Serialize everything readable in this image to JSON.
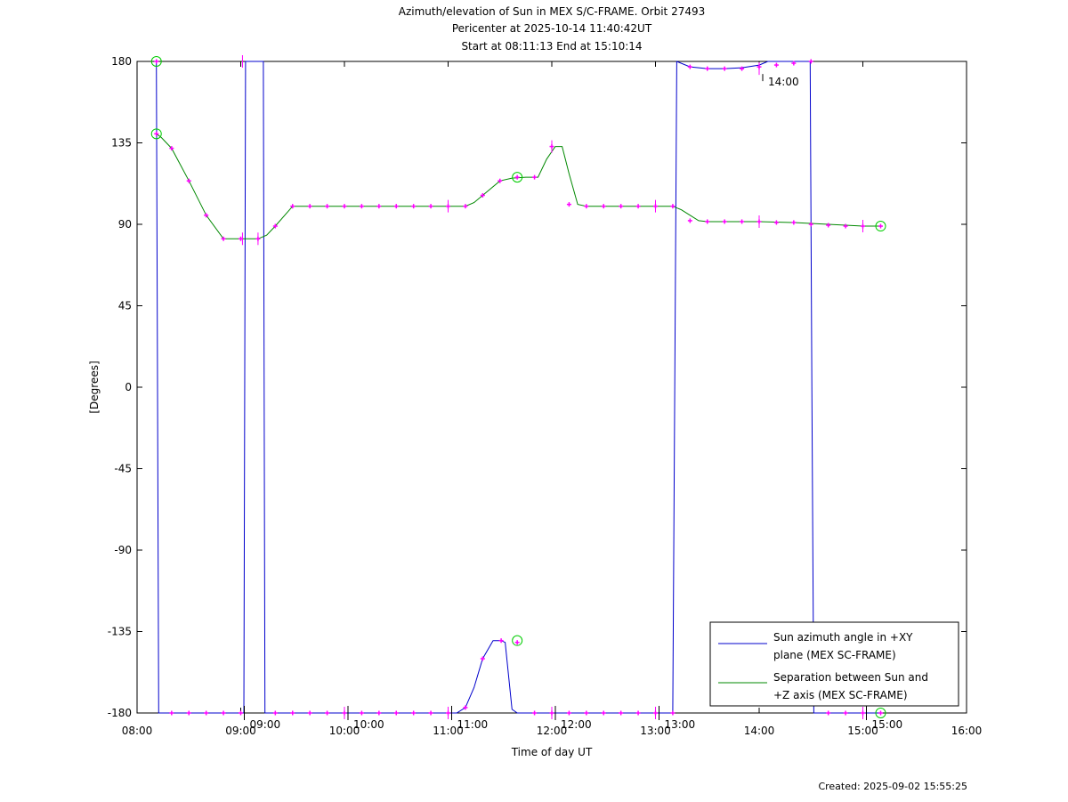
{
  "chart_data": {
    "type": "line",
    "title_lines": [
      "Azimuth/elevation of Sun in MEX S/C-FRAME.  Orbit 27493",
      "Pericenter at 2025-10-14 11:40:42UT",
      "Start at 08:11:13 End at 15:10:14"
    ],
    "xlabel": "Time of day UT",
    "ylabel": "[Degrees]",
    "xlim": [
      480,
      960
    ],
    "ylim": [
      -180,
      180
    ],
    "x_ticks": [
      {
        "value": 480,
        "label": "08:00"
      },
      {
        "value": 540,
        "label": "09:00"
      },
      {
        "value": 600,
        "label": "10:00"
      },
      {
        "value": 660,
        "label": "11:00"
      },
      {
        "value": 720,
        "label": "12:00"
      },
      {
        "value": 780,
        "label": "13:00"
      },
      {
        "value": 840,
        "label": "14:00"
      },
      {
        "value": 900,
        "label": "15:00"
      },
      {
        "value": 960,
        "label": "16:00"
      }
    ],
    "y_ticks": [
      180,
      135,
      90,
      45,
      0,
      -45,
      -90,
      -135,
      -180
    ],
    "grid": false,
    "legend_position": "bottom-right",
    "series": [
      {
        "name": "Sun azimuth angle in +XY plane (MEX SC-FRAME)",
        "name_lines": [
          "Sun azimuth angle in +XY",
          "plane (MEX SC-FRAME)"
        ],
        "color": "#0000cc",
        "points": [
          [
            491.2,
            180
          ],
          [
            492.5,
            -180
          ],
          [
            541.8,
            -180
          ],
          [
            542.8,
            180
          ],
          [
            553.1,
            180
          ],
          [
            554.0,
            -180
          ],
          [
            660,
            -180
          ],
          [
            665,
            -180
          ],
          [
            670,
            -177
          ],
          [
            675,
            -166
          ],
          [
            680,
            -150
          ],
          [
            686,
            -140
          ],
          [
            690.7,
            -140
          ],
          [
            693,
            -141
          ],
          [
            697,
            -178
          ],
          [
            700,
            -180
          ],
          [
            750,
            -180
          ],
          [
            790,
            -180
          ],
          [
            792.3,
            180
          ],
          [
            800,
            177
          ],
          [
            810,
            176
          ],
          [
            820,
            176
          ],
          [
            830,
            176.5
          ],
          [
            840,
            178
          ],
          [
            845,
            180
          ],
          [
            869.5,
            180
          ],
          [
            870.5,
            0
          ],
          [
            871.6,
            -180
          ],
          [
            910.3,
            -180
          ]
        ]
      },
      {
        "name": "Separation between Sun and +Z axis (MEX SC-FRAME)",
        "name_lines": [
          "Separation between Sun and",
          "+Z axis (MEX SC-FRAME)"
        ],
        "color": "#008800",
        "points": [
          [
            491.2,
            140
          ],
          [
            494,
            138
          ],
          [
            500,
            132
          ],
          [
            510,
            114
          ],
          [
            520,
            95
          ],
          [
            530,
            82
          ],
          [
            540,
            82
          ],
          [
            550,
            82
          ],
          [
            555,
            84
          ],
          [
            560,
            89
          ],
          [
            570,
            100
          ],
          [
            580,
            100
          ],
          [
            600,
            100
          ],
          [
            620,
            100
          ],
          [
            640,
            100
          ],
          [
            660,
            100
          ],
          [
            670,
            100
          ],
          [
            675,
            102
          ],
          [
            680,
            106
          ],
          [
            690,
            114
          ],
          [
            697,
            115.5
          ],
          [
            705,
            116
          ],
          [
            712,
            116
          ],
          [
            717,
            126
          ],
          [
            722,
            133
          ],
          [
            726,
            133
          ],
          [
            730,
            118
          ],
          [
            735,
            101
          ],
          [
            740,
            100
          ],
          [
            760,
            100
          ],
          [
            780,
            100
          ],
          [
            790,
            100
          ],
          [
            795,
            98
          ],
          [
            800,
            95
          ],
          [
            805,
            92
          ],
          [
            810,
            91.5
          ],
          [
            840,
            91.5
          ],
          [
            860,
            91
          ],
          [
            880,
            90
          ],
          [
            900,
            89
          ],
          [
            910.3,
            89
          ]
        ]
      }
    ],
    "marker_color": "#ff00ff",
    "markers": [
      [
        491.2,
        180
      ],
      [
        500,
        -180
      ],
      [
        510,
        -180
      ],
      [
        520,
        -180
      ],
      [
        530,
        -180
      ],
      [
        540,
        -180
      ],
      [
        560,
        -180
      ],
      [
        570,
        -180
      ],
      [
        580,
        -180
      ],
      [
        590,
        -180
      ],
      [
        600,
        -180
      ],
      [
        610,
        -180
      ],
      [
        620,
        -180
      ],
      [
        630,
        -180
      ],
      [
        640,
        -180
      ],
      [
        650,
        -180
      ],
      [
        660,
        -180
      ],
      [
        670,
        -177
      ],
      [
        680,
        -150
      ],
      [
        690.7,
        -140
      ],
      [
        700,
        -141
      ],
      [
        710,
        -180
      ],
      [
        720,
        -180
      ],
      [
        730,
        -180
      ],
      [
        740,
        -180
      ],
      [
        750,
        -180
      ],
      [
        760,
        -180
      ],
      [
        770,
        -180
      ],
      [
        780,
        -180
      ],
      [
        790,
        -180
      ],
      [
        800,
        177
      ],
      [
        810,
        176
      ],
      [
        820,
        176
      ],
      [
        830,
        176
      ],
      [
        840,
        177
      ],
      [
        850,
        178
      ],
      [
        860,
        179
      ],
      [
        870,
        180
      ],
      [
        880,
        -180
      ],
      [
        890,
        -180
      ],
      [
        900,
        -180
      ],
      [
        910.3,
        -180
      ],
      [
        491.2,
        140
      ],
      [
        500,
        132
      ],
      [
        510,
        114
      ],
      [
        520,
        95
      ],
      [
        530,
        82
      ],
      [
        540,
        82
      ],
      [
        550,
        82
      ],
      [
        560,
        89
      ],
      [
        570,
        100
      ],
      [
        580,
        100
      ],
      [
        590,
        100
      ],
      [
        600,
        100
      ],
      [
        610,
        100
      ],
      [
        620,
        100
      ],
      [
        630,
        100
      ],
      [
        640,
        100
      ],
      [
        650,
        100
      ],
      [
        660,
        100
      ],
      [
        670,
        100
      ],
      [
        680,
        106
      ],
      [
        690,
        114
      ],
      [
        700,
        116
      ],
      [
        710,
        116
      ],
      [
        720,
        133
      ],
      [
        730,
        101
      ],
      [
        740,
        100
      ],
      [
        750,
        100
      ],
      [
        760,
        100
      ],
      [
        770,
        100
      ],
      [
        780,
        100
      ],
      [
        790,
        100
      ],
      [
        800,
        92
      ],
      [
        810,
        91.5
      ],
      [
        820,
        91.5
      ],
      [
        830,
        91.5
      ],
      [
        840,
        91.5
      ],
      [
        850,
        91
      ],
      [
        860,
        91
      ],
      [
        870,
        90
      ],
      [
        880,
        89.5
      ],
      [
        890,
        89
      ],
      [
        900,
        89
      ],
      [
        910.3,
        89
      ]
    ],
    "major_ticks": [
      [
        541,
        180
      ],
      [
        541,
        82
      ],
      [
        550,
        82
      ],
      [
        600,
        -180
      ],
      [
        660,
        -180
      ],
      [
        660,
        100
      ],
      [
        720,
        -180
      ],
      [
        720,
        133
      ],
      [
        780,
        -180
      ],
      [
        780,
        100
      ],
      [
        840,
        176
      ],
      [
        840,
        91.5
      ],
      [
        900,
        -180
      ],
      [
        900,
        89
      ]
    ],
    "circle_color": "#00cc00",
    "circles": [
      [
        491.2,
        180
      ],
      [
        491.2,
        140
      ],
      [
        700,
        116
      ],
      [
        700,
        -140
      ],
      [
        910.3,
        89
      ],
      [
        910.3,
        -180
      ]
    ],
    "time_annotations": [
      {
        "x": 540,
        "y": -180,
        "label": "09:00"
      },
      {
        "x": 600,
        "y": -180,
        "label": "10:00"
      },
      {
        "x": 660,
        "y": -180,
        "label": "11:00"
      },
      {
        "x": 720,
        "y": -180,
        "label": "12:00"
      },
      {
        "x": 780,
        "y": -180,
        "label": "13:00"
      },
      {
        "x": 840,
        "y": 176,
        "label": "14:00"
      },
      {
        "x": 900,
        "y": -180,
        "label": "15:00"
      }
    ]
  },
  "footer": {
    "created": "Created: 2025-09-02 15:55:25"
  }
}
